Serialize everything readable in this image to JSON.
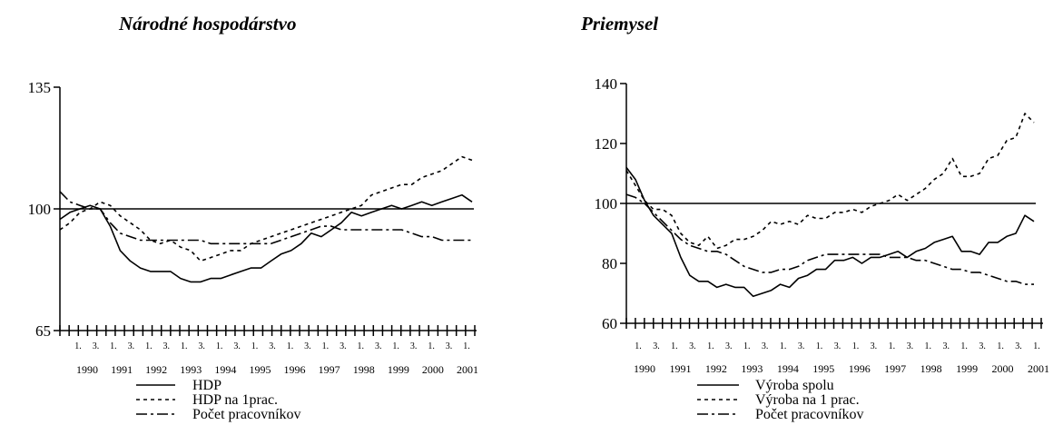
{
  "chart_data": [
    {
      "type": "line",
      "title": "Národné hospodárstvo",
      "ylim": [
        65,
        135
      ],
      "yticks": [
        65,
        100,
        135
      ],
      "reference_line": 100,
      "quarter_tick_labels": [
        "1.",
        "3.",
        "1.",
        "3.",
        "1.",
        "3.",
        "1.",
        "3.",
        "1.",
        "3.",
        "1.",
        "3.",
        "1.",
        "3.",
        "1.",
        "3.",
        "1.",
        "3.",
        "1.",
        "3.",
        "1.",
        "3.",
        "1."
      ],
      "year_labels": [
        "1990",
        "1991",
        "1992",
        "1993",
        "1994",
        "1995",
        "1996",
        "1997",
        "1998",
        "1999",
        "2000",
        "2001"
      ],
      "series": [
        {
          "name": "HDP",
          "style": "solid",
          "values": [
            97,
            99,
            100,
            101,
            100,
            95,
            88,
            85,
            83,
            82,
            82,
            82,
            80,
            79,
            79,
            80,
            80,
            81,
            82,
            83,
            83,
            85,
            87,
            88,
            90,
            93,
            92,
            94,
            96,
            99,
            98,
            99,
            100,
            101,
            100,
            101,
            102,
            101,
            102,
            103,
            104,
            102
          ]
        },
        {
          "name": "HDP na 1prac.",
          "style": "dashed",
          "values": [
            94,
            96,
            99,
            100,
            102,
            101,
            98,
            96,
            94,
            91,
            90,
            91,
            89,
            88,
            85,
            86,
            87,
            88,
            88,
            90,
            91,
            92,
            93,
            94,
            95,
            96,
            97,
            98,
            99,
            100,
            101,
            104,
            105,
            106,
            107,
            107,
            109,
            110,
            111,
            113,
            115,
            114
          ]
        },
        {
          "name": "Počet pracovníkov",
          "style": "dashdot",
          "values": [
            105,
            102,
            101,
            100,
            100,
            96,
            93,
            92,
            91,
            91,
            91,
            91,
            91,
            91,
            91,
            90,
            90,
            90,
            90,
            90,
            90,
            90,
            91,
            92,
            93,
            94,
            95,
            95,
            94,
            94,
            94,
            94,
            94,
            94,
            94,
            93,
            92,
            92,
            91,
            91,
            91,
            91
          ]
        }
      ]
    },
    {
      "type": "line",
      "title": "Priemysel",
      "ylim": [
        60,
        140
      ],
      "yticks": [
        60,
        80,
        100,
        120,
        140
      ],
      "reference_line": 100,
      "quarter_tick_labels": [
        "1.",
        "3.",
        "1.",
        "3.",
        "1.",
        "3.",
        "1.",
        "3.",
        "1.",
        "3.",
        "1.",
        "3.",
        "1.",
        "3.",
        "1.",
        "3.",
        "1.",
        "3.",
        "1.",
        "3.",
        "1.",
        "3.",
        "1."
      ],
      "year_labels": [
        "1990",
        "1991",
        "1992",
        "1993",
        "1994",
        "1995",
        "1996",
        "1997",
        "1998",
        "1999",
        "2000",
        "2001"
      ],
      "series": [
        {
          "name": "Výroba spolu",
          "style": "solid",
          "values": [
            112,
            108,
            101,
            96,
            93,
            90,
            82,
            76,
            74,
            74,
            72,
            73,
            72,
            72,
            69,
            70,
            71,
            73,
            72,
            75,
            76,
            78,
            78,
            81,
            81,
            82,
            80,
            82,
            82,
            83,
            84,
            82,
            84,
            85,
            87,
            88,
            89,
            84,
            84,
            83,
            87,
            87,
            89,
            90,
            96,
            94
          ]
        },
        {
          "name": "Výroba na 1 prac.",
          "style": "dashed",
          "values": [
            111,
            106,
            101,
            98,
            98,
            96,
            90,
            87,
            86,
            89,
            85,
            86,
            88,
            88,
            89,
            91,
            94,
            93,
            94,
            93,
            96,
            95,
            95,
            97,
            97,
            98,
            97,
            99,
            100,
            101,
            103,
            101,
            103,
            105,
            108,
            110,
            115,
            109,
            109,
            110,
            115,
            116,
            121,
            122,
            130,
            127
          ]
        },
        {
          "name": "Počet pracovníkov",
          "style": "dashdot",
          "values": [
            103,
            102,
            100,
            97,
            94,
            91,
            88,
            86,
            85,
            84,
            84,
            83,
            81,
            79,
            78,
            77,
            77,
            78,
            78,
            79,
            81,
            82,
            83,
            83,
            83,
            83,
            83,
            83,
            83,
            82,
            82,
            82,
            81,
            81,
            80,
            79,
            78,
            78,
            77,
            77,
            76,
            75,
            74,
            74,
            73,
            73
          ]
        }
      ]
    }
  ]
}
